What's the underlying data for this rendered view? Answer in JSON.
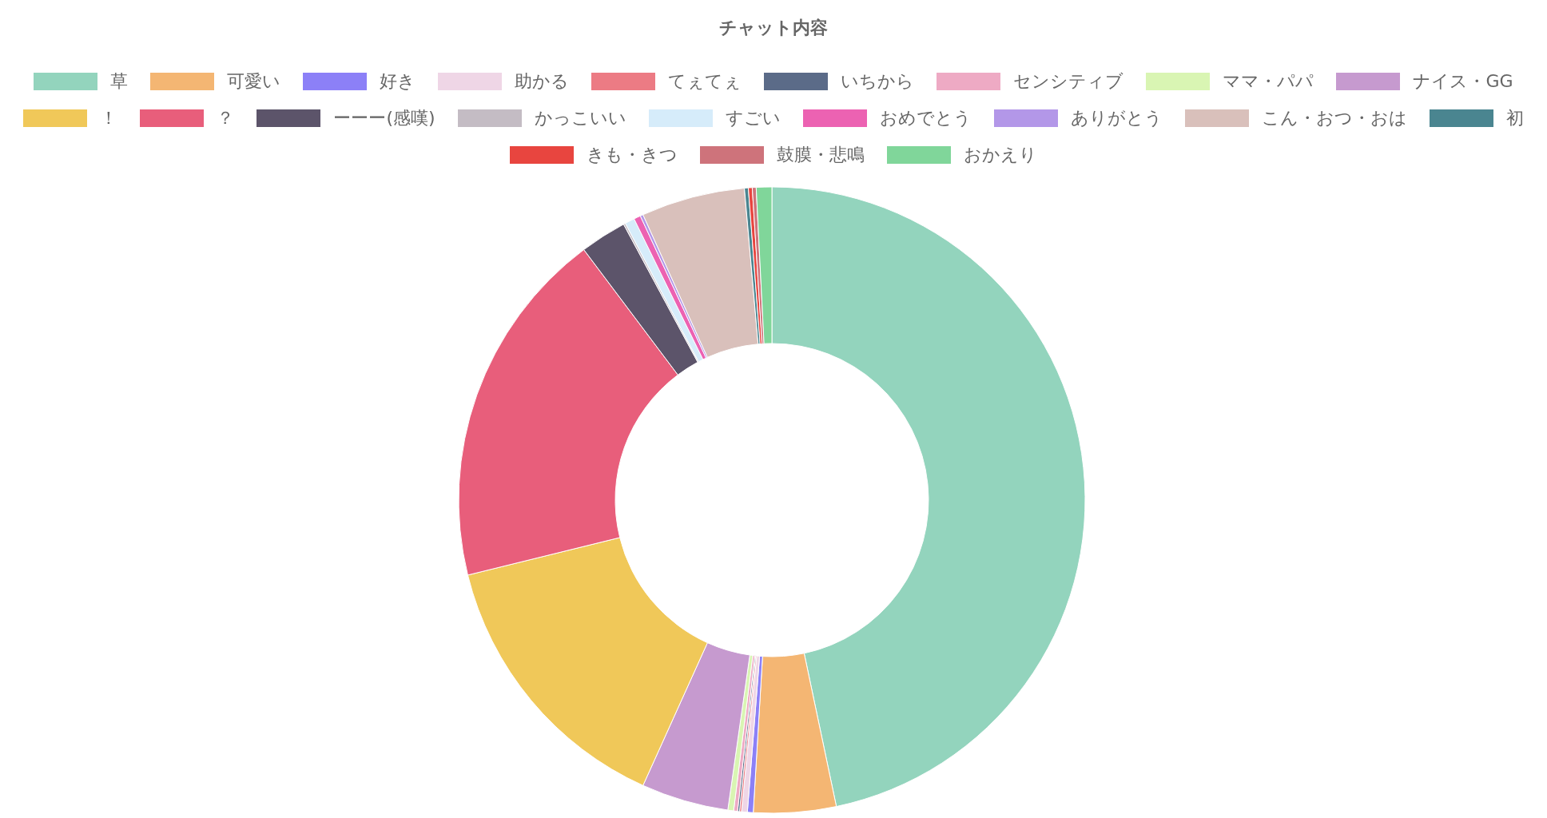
{
  "chart_data": {
    "type": "donut",
    "title": "チャット内容",
    "legend": "top",
    "categories": [
      "草",
      "可愛い",
      "好き",
      "助かる",
      "てぇてぇ",
      "いちから",
      "センシティブ",
      "ママ・パパ",
      "ナイス・GG",
      "！",
      "？",
      "ーーー(感嘆)",
      "かっこいい",
      "すごい",
      "おめでとう",
      "ありがとう",
      "こん・おつ・おは",
      "初",
      "きも・きつ",
      "鼓膜・悲鳴",
      "おかえり"
    ],
    "values": [
      46.7,
      4.25,
      0.3,
      0.3,
      0.1,
      0.1,
      0.2,
      0.3,
      4.5,
      14.4,
      18.6,
      2.4,
      0.1,
      0.5,
      0.35,
      0.15,
      5.35,
      0.2,
      0.2,
      0.2,
      0.8
    ],
    "colors": [
      "#93d4bd",
      "#f4b673",
      "#8c80f7",
      "#efd6e6",
      "#ec7b84",
      "#5b6b88",
      "#eeaac4",
      "#d9f5b3",
      "#c69acf",
      "#f0c859",
      "#e85e7b",
      "#5c546a",
      "#c4bcc4",
      "#d6ecfa",
      "#ec62b2",
      "#b397e8",
      "#d9c0bb",
      "#4a8590",
      "#e8453f",
      "#ce737b",
      "#80d69a"
    ]
  }
}
